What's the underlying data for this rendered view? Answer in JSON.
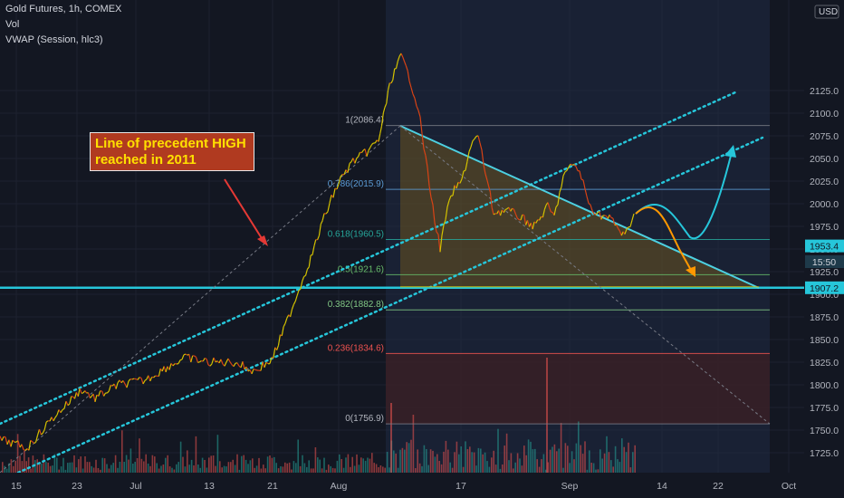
{
  "header": {
    "title": "Gold Futures, 1h, COMEX",
    "line2": "Vol",
    "line3": "VWAP (Session, hlc3)"
  },
  "annotation": {
    "line1": "Line of precedent HIGH",
    "line2": "reached in 2011"
  },
  "currency": "USD",
  "colors": {
    "background": "#131722",
    "channel": "#26c6da",
    "resistance": "#4dd0e1",
    "price_up": "#d4c200",
    "price_down": "#d84315",
    "annotation_fill": "#b03a20",
    "annotation_text": "#ffe000",
    "projection_up": "#26c6da",
    "projection_down": "#ff9800"
  },
  "chart_data": {
    "type": "line",
    "title": "Gold Futures, 1h, COMEX",
    "ylim": [
      1705,
      2135
    ],
    "y_ticks": [
      1725,
      1750,
      1775,
      1800,
      1825,
      1850,
      1875,
      1900,
      1925,
      1950,
      1975,
      2000,
      2025,
      2050,
      2075,
      2100,
      2125
    ],
    "x_ticks": [
      "15",
      "23",
      "Jul",
      "13",
      "21",
      "Aug",
      "17",
      "Sep",
      "14",
      "22",
      "Oct"
    ],
    "grid": true,
    "series": [
      {
        "points": [
          [
            "15",
            1725
          ],
          [
            "23",
            1765
          ],
          [
            "Jul",
            1780
          ],
          [
            "13",
            1800
          ],
          [
            "21",
            1805
          ],
          [
            "Aug",
            1975
          ],
          [
            "Aug",
            2075
          ],
          [
            "Aug",
            2086
          ],
          [
            "17",
            2010
          ],
          [
            "17",
            1935
          ],
          [
            "Sep",
            1995
          ],
          [
            "Sep",
            1930
          ]
        ]
      }
    ],
    "price_labels": [
      {
        "value": 1953.4,
        "text": "1953.4"
      },
      {
        "value": 1936,
        "text": "15:50"
      },
      {
        "value": 1907.2,
        "text": "1907.2"
      }
    ],
    "fib_levels": [
      {
        "label": "1(2086.4)",
        "value": 2086.4
      },
      {
        "label": "0.786(2015.9)",
        "value": 2015.9
      },
      {
        "label": "0.618(1960.5)",
        "value": 1960.5
      },
      {
        "label": "0.5(1921.6)",
        "value": 1921.6
      },
      {
        "label": "0.382(1882.8)",
        "value": 1882.8
      },
      {
        "label": "0.236(1834.6)",
        "value": 1834.6
      },
      {
        "label": "0(1756.9)",
        "value": 1756.9
      }
    ],
    "horizontal_support": 1907.2,
    "annotations": [
      "Line of precedent HIGH reached in 2011"
    ]
  }
}
